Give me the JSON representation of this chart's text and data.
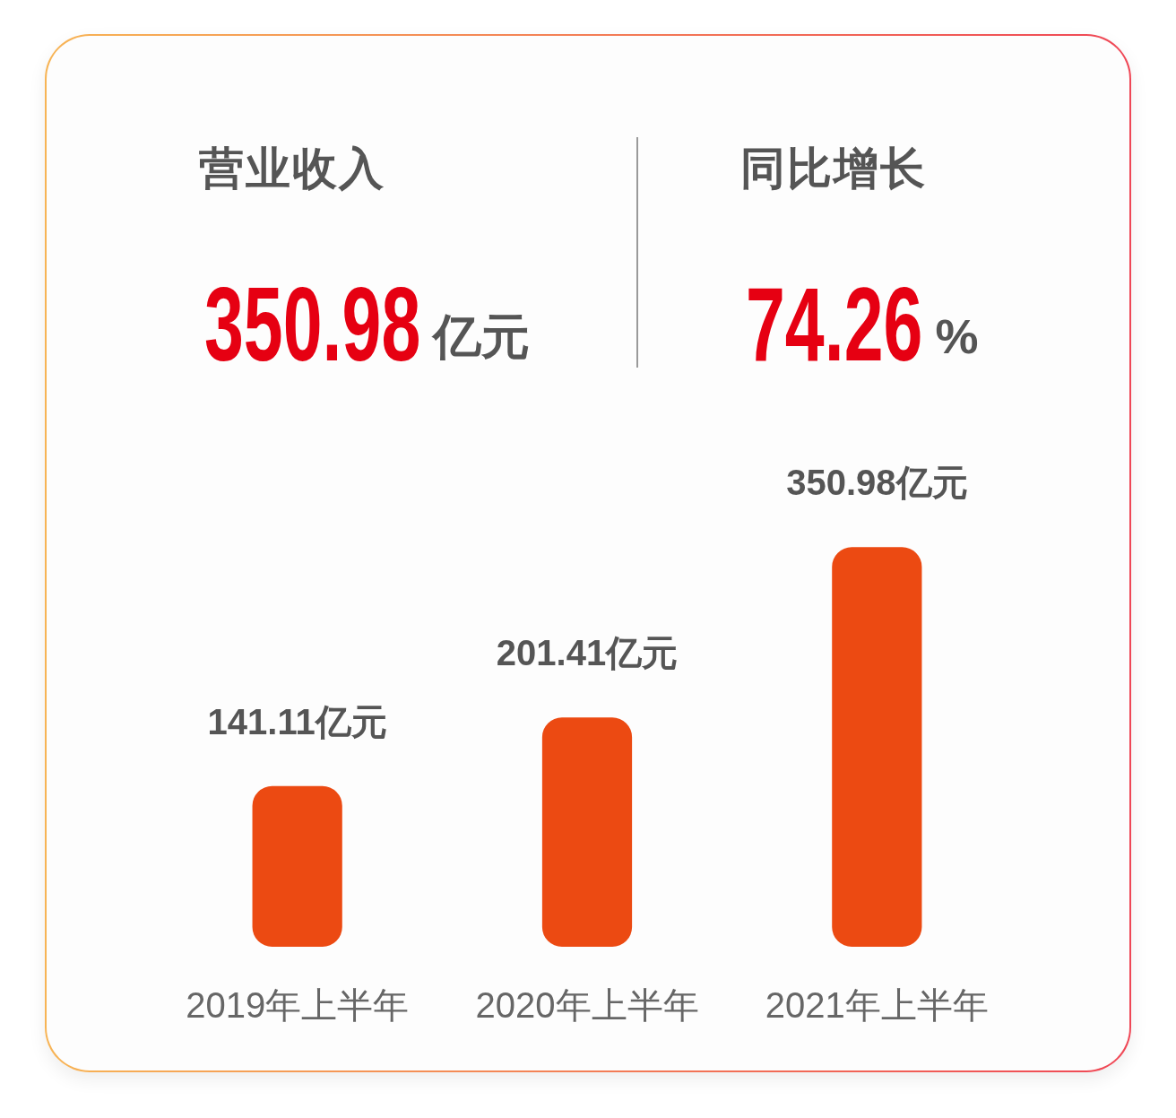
{
  "chart_data": [
    {
      "type": "other",
      "annotations": [
        "营业收入",
        "350.98",
        "亿元",
        "同比增长",
        "74.26",
        "%"
      ]
    },
    {
      "type": "bar",
      "categories": [
        "2019年上半年",
        "2020年上半年",
        "2021年上半年"
      ],
      "values": [
        141.11,
        201.41,
        350.98
      ],
      "color": "#ec4a12",
      "value_labels": [
        "141.11亿元",
        "201.41亿元",
        "350.98亿元"
      ],
      "tick_labels": "x"
    }
  ]
}
